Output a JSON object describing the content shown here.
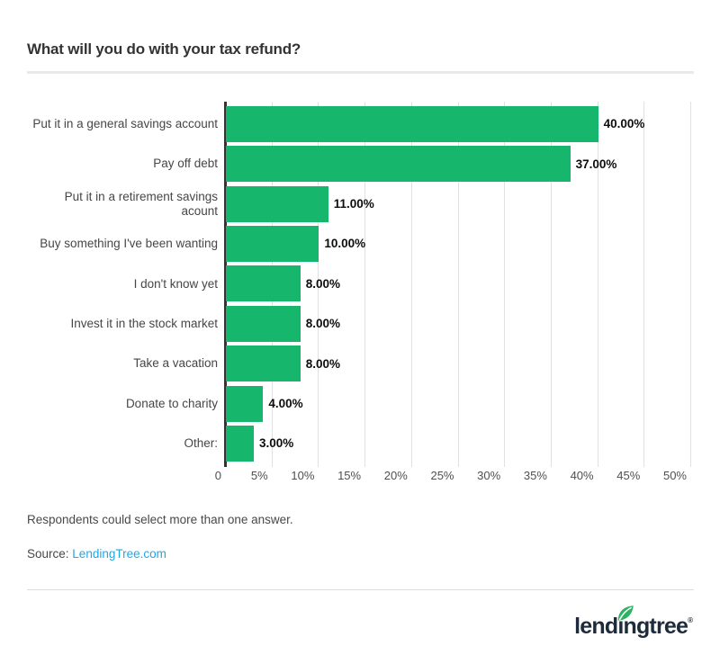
{
  "page": {
    "title": "What will you do with your tax refund?",
    "note": "Respondents could select more than one answer.",
    "source_label": "Source:",
    "source_link": "LendingTree.com"
  },
  "chart_data": {
    "type": "bar",
    "orientation": "horizontal",
    "title": "What will you do with your tax refund?",
    "categories": [
      "Put it in a general savings account",
      "Pay off debt",
      "Put it in a retirement savings acount",
      "Buy something I've been wanting",
      "I don't know yet",
      "Invest it in the stock market",
      "Take a vacation",
      "Donate to charity",
      "Other:"
    ],
    "values": [
      40,
      37,
      11,
      10,
      8,
      8,
      8,
      4,
      3
    ],
    "value_labels": [
      "40.00%",
      "37.00%",
      "11.00%",
      "10.00%",
      "8.00%",
      "8.00%",
      "8.00%",
      "4.00%",
      "3.00%"
    ],
    "x_ticks": [
      "0",
      "5%",
      "10%",
      "15%",
      "20%",
      "25%",
      "30%",
      "35%",
      "40%",
      "45%",
      "50%"
    ],
    "xlim": [
      0,
      50
    ],
    "grid": "vertical",
    "legend": "none",
    "bar_color": "#16b76c",
    "axis_color": "#333333",
    "gridline_color": "#e1e1e1"
  },
  "footer": {
    "brand": "lendingtree",
    "brand_parts": {
      "pre": "lend",
      "i": "ı",
      "post": "ngtree"
    },
    "registered": "®",
    "colors": {
      "navy": "#1e2b3a",
      "leaf": "#2db163"
    }
  }
}
